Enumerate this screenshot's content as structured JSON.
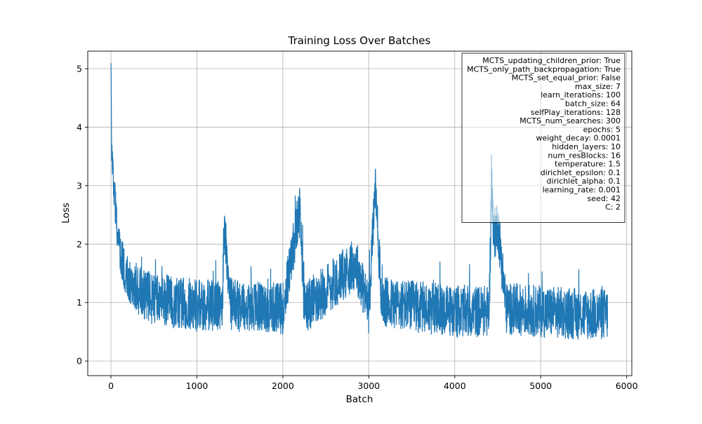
{
  "chart_data": {
    "type": "line",
    "title": "Training Loss Over Batches",
    "xlabel": "Batch",
    "ylabel": "Loss",
    "xlim": [
      -270,
      6060
    ],
    "ylim": [
      -0.25,
      5.3
    ],
    "xticks": [
      0,
      1000,
      2000,
      3000,
      4000,
      5000,
      6000
    ],
    "yticks": [
      0,
      1,
      2,
      3,
      4,
      5
    ],
    "grid": true,
    "series_color": "#1f77b4",
    "series": [
      {
        "summary_points": [
          [
            0,
            5.05
          ],
          [
            8,
            3.7
          ],
          [
            20,
            3.3
          ],
          [
            40,
            2.9
          ],
          [
            60,
            2.5
          ],
          [
            80,
            2.1
          ],
          [
            100,
            1.9
          ],
          [
            150,
            1.6
          ],
          [
            200,
            1.45
          ],
          [
            300,
            1.25
          ],
          [
            400,
            1.1
          ],
          [
            600,
            1.05
          ],
          [
            1000,
            0.95
          ],
          [
            1300,
            0.95
          ],
          [
            1310,
            2.1
          ],
          [
            1330,
            2.05
          ],
          [
            1400,
            0.95
          ],
          [
            2000,
            0.9
          ],
          [
            2200,
            2.62
          ],
          [
            2250,
            0.9
          ],
          [
            2850,
            1.67
          ],
          [
            3000,
            0.9
          ],
          [
            3060,
            2.58
          ],
          [
            3075,
            3.0
          ],
          [
            3100,
            2.3
          ],
          [
            3150,
            1.0
          ],
          [
            4000,
            0.85
          ],
          [
            4400,
            0.85
          ],
          [
            4430,
            3.16
          ],
          [
            4450,
            2.1
          ],
          [
            4500,
            2.35
          ],
          [
            4600,
            0.9
          ],
          [
            5000,
            0.85
          ],
          [
            5500,
            0.8
          ],
          [
            5780,
            0.8
          ]
        ],
        "noise_min": 0.05,
        "noise_max": 1.35
      }
    ],
    "legend_box_position": "top-right",
    "annotation_lines": [
      "MCTS_updating_children_prior: True",
      "MCTS_only_path_backpropagation: True",
      "MCTS_set_equal_prior: False",
      "max_size: 7",
      "learn_iterations: 100",
      "batch_size: 64",
      "selfPlay_iterations: 128",
      "MCTS_num_searches: 300",
      "epochs: 5",
      "weight_decay: 0.0001",
      "hidden_layers: 10",
      "num_resBlocks: 16",
      "temperature: 1.5",
      "dirichlet_epsilon: 0.1",
      "dirichlet_alpha: 0.1",
      "learning_rate: 0.001",
      "seed: 42",
      "C: 2"
    ]
  }
}
